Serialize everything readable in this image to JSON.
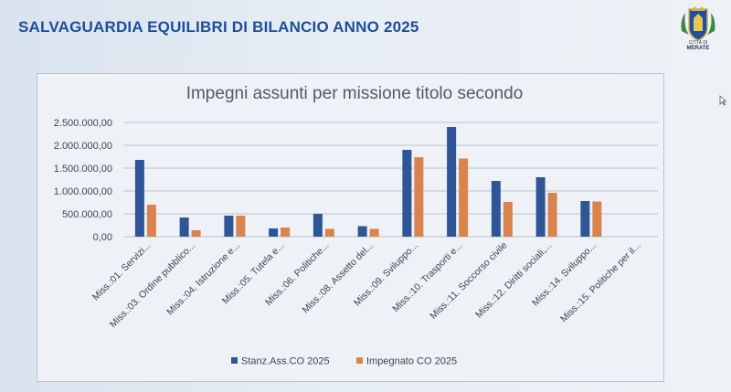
{
  "slide": {
    "title": "SALVAGUARDIA EQUILIBRI DI BILANCIO ANNO 2025",
    "logo_caption_small": "CITTÀ DI",
    "logo_caption_big": "MERATE"
  },
  "chart_data": {
    "type": "bar",
    "title": "Impegni assunti per missione titolo secondo",
    "xlabel": "",
    "ylabel": "",
    "ylim": [
      0,
      2500000
    ],
    "yticks": [
      0,
      500000,
      1000000,
      1500000,
      2000000,
      2500000
    ],
    "ytick_labels": [
      "0,00",
      "500.000,00",
      "1.000.000,00",
      "1.500.000,00",
      "2.000.000,00",
      "2.500.000,00"
    ],
    "grid": true,
    "legend_position": "bottom",
    "categories": [
      "Miss.:01. Servizi...",
      "Miss.:03. Ordine pubblico...",
      "Miss.:04. Istruzione e...",
      "Miss.:05. Tutela e...",
      "Miss.:06. Politiche...",
      "Miss.:08. Assetto del...",
      "Miss.:09. Sviluppo...",
      "Miss.:10. Trasporti e...",
      "Miss.:11. Soccorso civile",
      "Miss.:12. Diritti sociali,...",
      "Miss.:14. Sviluppo...",
      "Miss.:15. Politiche per il..."
    ],
    "series": [
      {
        "name": "Stanz.Ass.CO 2025",
        "color": "#2f5597",
        "values": [
          1680000,
          420000,
          460000,
          180000,
          500000,
          230000,
          1900000,
          2400000,
          1220000,
          1300000,
          780000,
          0
        ]
      },
      {
        "name": "Impegnato CO 2025",
        "color": "#d9844e",
        "values": [
          700000,
          140000,
          460000,
          200000,
          170000,
          170000,
          1740000,
          1710000,
          760000,
          960000,
          770000,
          0
        ]
      }
    ]
  }
}
